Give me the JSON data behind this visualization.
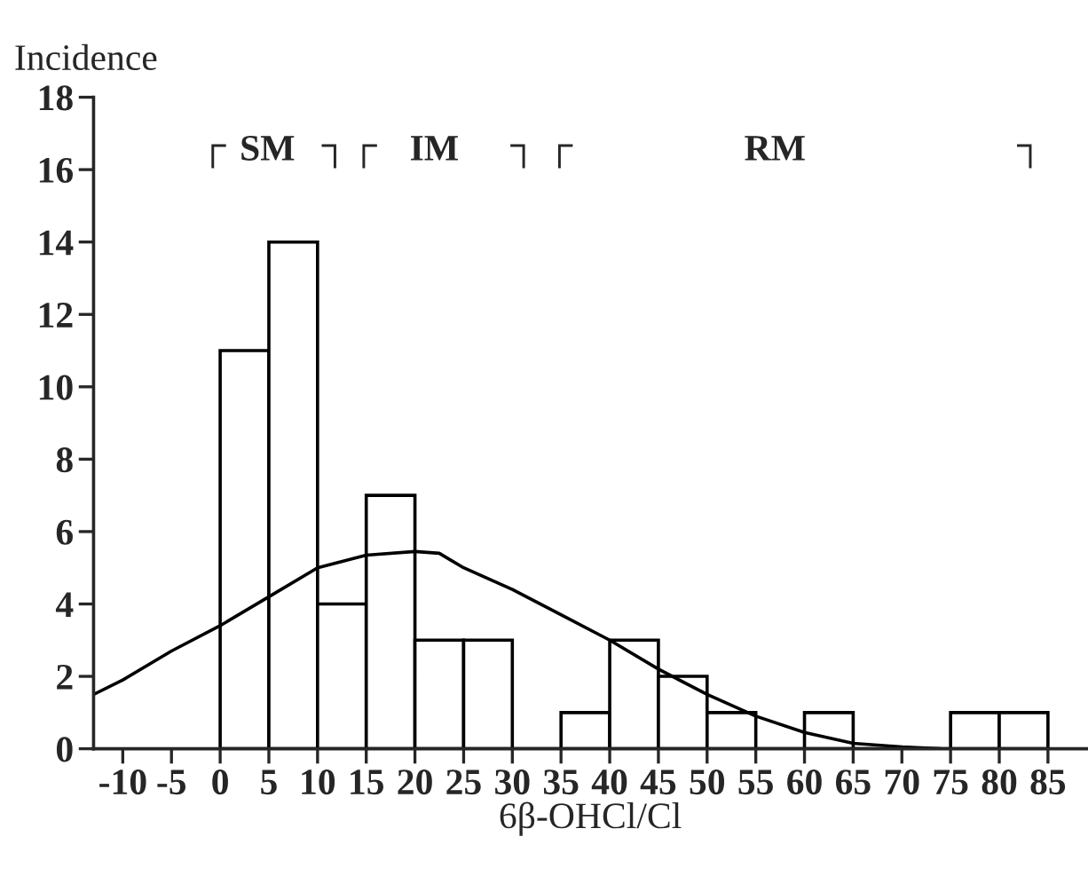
{
  "chart_data": {
    "type": "histogram",
    "xlabel": "6β-OHCl/Cl",
    "ylabel": "Incidence",
    "bins": [
      0,
      5,
      10,
      15,
      20,
      25,
      30,
      35,
      40,
      45,
      50,
      55,
      60,
      65,
      70,
      75,
      80,
      85
    ],
    "values": [
      11,
      14,
      4,
      7,
      3,
      3,
      0,
      1,
      3,
      2,
      1,
      0,
      1,
      0,
      0,
      1,
      1
    ],
    "color": "#000000",
    "series": [
      {
        "type": "line",
        "color": "#000000",
        "x": [
          -13,
          -10,
          -5,
          0,
          5,
          10,
          15,
          20,
          22.5,
          25,
          30,
          35,
          40,
          45,
          50,
          55,
          60,
          65,
          70,
          74
        ],
        "values": [
          1.5,
          1.9,
          2.7,
          3.4,
          4.2,
          5.0,
          5.35,
          5.45,
          5.4,
          5.0,
          4.4,
          3.7,
          3.0,
          2.2,
          1.5,
          0.9,
          0.45,
          0.15,
          0.05,
          0
        ]
      }
    ],
    "annotations": [
      "┌SM ┐",
      "┌ IM ┐",
      "┌ RM ┐"
    ],
    "xlim": [
      -13,
      89
    ],
    "xticks": [
      -10,
      -5,
      0,
      5,
      10,
      15,
      20,
      25,
      30,
      35,
      40,
      45,
      50,
      55,
      60,
      65,
      70,
      75,
      80,
      85
    ],
    "ylim": [
      0,
      18
    ],
    "yticks": [
      0,
      2,
      4,
      6,
      8,
      10,
      12,
      14,
      16,
      18
    ],
    "grid": false,
    "legend": false
  }
}
